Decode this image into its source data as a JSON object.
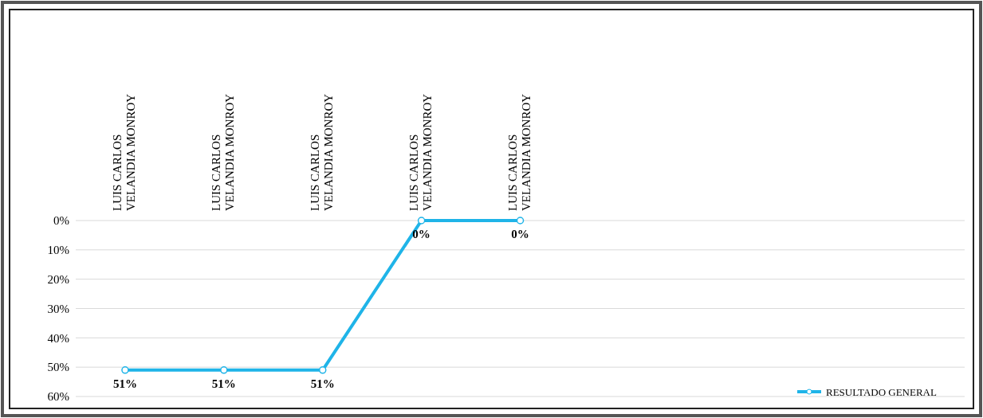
{
  "chart_data": {
    "type": "line",
    "categories": [
      "LUIS CARLOS VELANDIA MONROY",
      "LUIS CARLOS VELANDIA MONROY",
      "LUIS CARLOS VELANDIA MONROY",
      "LUIS CARLOS VELANDIA MONROY",
      "LUIS CARLOS VELANDIA MONROY",
      null,
      null,
      null,
      null
    ],
    "series": [
      {
        "name": "RESULTADO GENERAL",
        "color": "#1fb4e8",
        "values": [
          51,
          51,
          51,
          0,
          0,
          null,
          null,
          null,
          null
        ]
      }
    ],
    "ylim": [
      60,
      0
    ],
    "yticks": [
      {
        "value": 0,
        "label": "0%"
      },
      {
        "value": 10,
        "label": "10%"
      },
      {
        "value": 20,
        "label": "20%"
      },
      {
        "value": 30,
        "label": "30%"
      },
      {
        "value": 40,
        "label": "40%"
      },
      {
        "value": 50,
        "label": "50%"
      },
      {
        "value": 60,
        "label": "60%"
      }
    ],
    "value_labels": [
      "51%",
      "51%",
      "51%",
      "0%",
      "0%",
      null,
      null,
      null,
      null
    ],
    "grid": "y",
    "legend": "bottom right",
    "marker": "circle",
    "line_style": "solid"
  }
}
